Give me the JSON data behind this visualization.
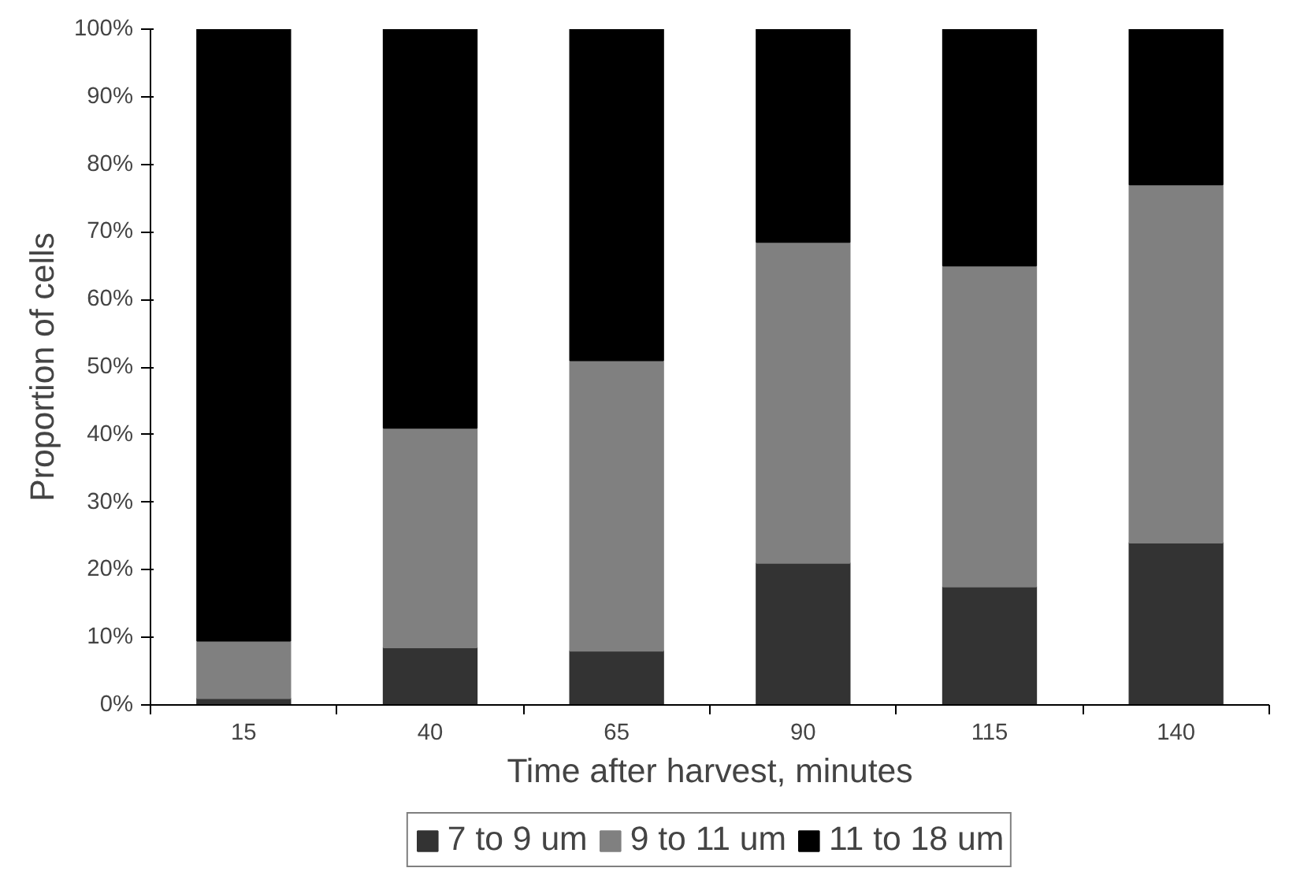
{
  "chart_data": {
    "type": "bar",
    "stacked": true,
    "xlabel": "Time after harvest, minutes",
    "ylabel": "Proportion of cells",
    "categories": [
      "15",
      "40",
      "65",
      "90",
      "115",
      "140"
    ],
    "series": [
      {
        "name": "7 to 9 um",
        "color": "#333333",
        "values": [
          1,
          8.5,
          8,
          21,
          17.5,
          24
        ]
      },
      {
        "name": "9 to 11 um",
        "color": "#808080",
        "values": [
          8.5,
          32.5,
          43,
          47.5,
          47.5,
          53
        ]
      },
      {
        "name": "11 to 18 um",
        "color": "#000000",
        "values": [
          90.5,
          59,
          49,
          31.5,
          35,
          23
        ]
      }
    ],
    "ylim": [
      0,
      100
    ],
    "yticks": [
      {
        "value": 0,
        "label": "0%"
      },
      {
        "value": 10,
        "label": "10%"
      },
      {
        "value": 20,
        "label": "20%"
      },
      {
        "value": 30,
        "label": "30%"
      },
      {
        "value": 40,
        "label": "40%"
      },
      {
        "value": 50,
        "label": "50%"
      },
      {
        "value": 60,
        "label": "60%"
      },
      {
        "value": 70,
        "label": "70%"
      },
      {
        "value": 80,
        "label": "80%"
      },
      {
        "value": 90,
        "label": "90%"
      },
      {
        "value": 100,
        "label": "100%"
      }
    ],
    "grid": false,
    "legend": "bottom"
  }
}
